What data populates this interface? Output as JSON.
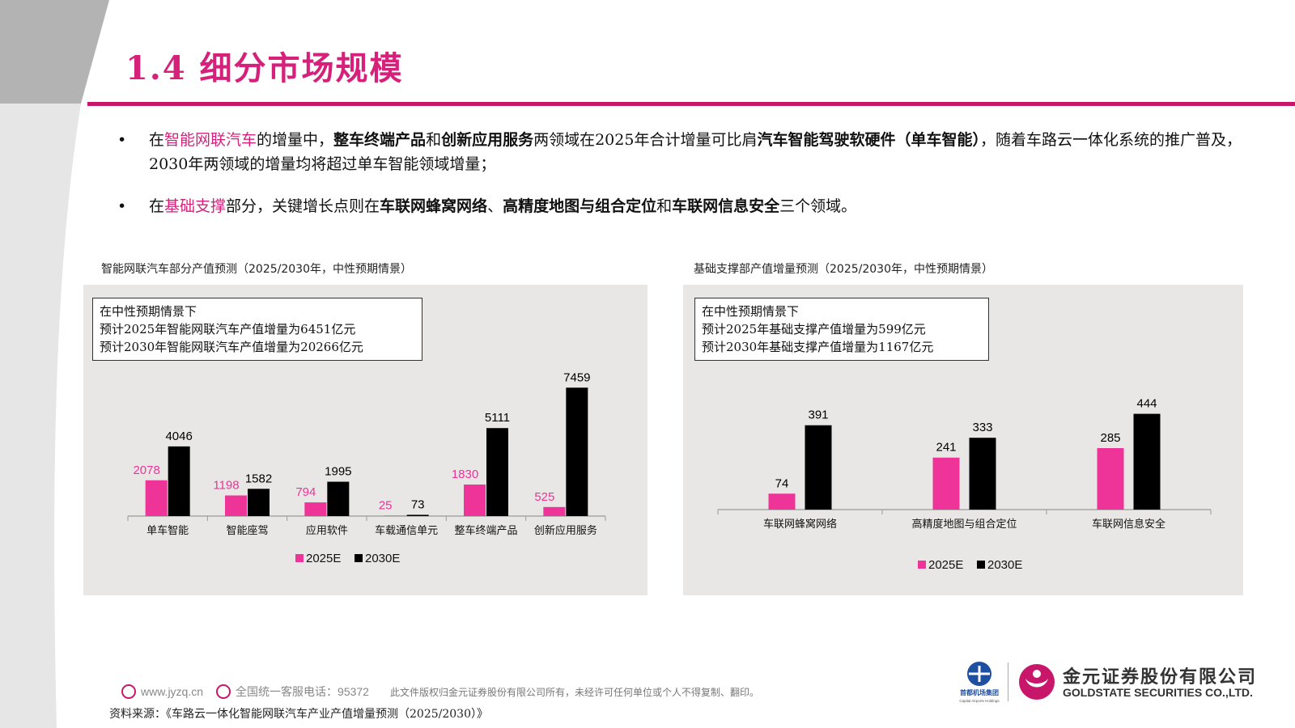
{
  "header": {
    "title": "1.4 细分市场规模"
  },
  "bullets": [
    {
      "segments": [
        {
          "text": "在",
          "style": "normal"
        },
        {
          "text": "智能网联汽车",
          "style": "highlight"
        },
        {
          "text": "的增量中，",
          "style": "normal"
        },
        {
          "text": "整车终端产品",
          "style": "bold"
        },
        {
          "text": "和",
          "style": "normal"
        },
        {
          "text": "创新应用服务",
          "style": "bold"
        },
        {
          "text": "两领域在2025年合计增量可比肩",
          "style": "normal"
        },
        {
          "text": "汽车智能驾驶软硬件（单车智能）",
          "style": "bold"
        },
        {
          "text": "，随着车路云一体化系统的推广普及，2030年两领域的增量均将超过单车智能领域增量；",
          "style": "normal"
        }
      ]
    },
    {
      "segments": [
        {
          "text": "在",
          "style": "normal"
        },
        {
          "text": "基础支撑",
          "style": "highlight"
        },
        {
          "text": "部分，关键增长点则在",
          "style": "normal"
        },
        {
          "text": "车联网蜂窝网络",
          "style": "bold"
        },
        {
          "text": "、",
          "style": "normal"
        },
        {
          "text": "高精度地图与组合定位",
          "style": "bold"
        },
        {
          "text": "和",
          "style": "normal"
        },
        {
          "text": "车联网信息安全",
          "style": "bold"
        },
        {
          "text": "三个领域。",
          "style": "normal"
        }
      ]
    }
  ],
  "bullet_symbol": "•",
  "chart_data": [
    {
      "type": "bar",
      "caption": "智能网联汽车部分产值预测（2025/2030年，中性预期情景）",
      "note_lines": [
        "在中性预期情景下",
        "预计2025年智能网联汽车产值增量为6451亿元",
        "预计2030年智能网联汽车产值增量为20266亿元"
      ],
      "categories": [
        "单车智能",
        "智能座驾",
        "应用软件",
        "车载通信单元",
        "整车终端产品",
        "创新应用服务"
      ],
      "series": [
        {
          "name": "2025E",
          "values": [
            2078,
            1198,
            794,
            25,
            1830,
            525
          ],
          "color": "#ee3399",
          "label_color": "#ee3399"
        },
        {
          "name": "2030E",
          "values": [
            4046,
            1582,
            1995,
            73,
            5111,
            7459
          ],
          "color": "#000000",
          "label_color": "#000000"
        }
      ],
      "ylim": [
        0,
        7800
      ],
      "legend_position": "bottom",
      "grid": false
    },
    {
      "type": "bar",
      "caption": "基础支撑部产值增量预测（2025/2030年，中性预期情景）",
      "note_lines": [
        "在中性预期情景下",
        "预计2025年基础支撑产值增量为599亿元",
        "预计2030年基础支撑产值增量为1167亿元"
      ],
      "categories": [
        "车联网蜂窝网络",
        "高精度地图与组合定位",
        "车联网信息安全"
      ],
      "series": [
        {
          "name": "2025E",
          "values": [
            74,
            241,
            285
          ],
          "color": "#ee3399",
          "label_color": "#000000"
        },
        {
          "name": "2030E",
          "values": [
            391,
            333,
            444
          ],
          "color": "#000000",
          "label_color": "#000000"
        }
      ],
      "ylim": [
        0,
        480
      ],
      "legend_position": "bottom",
      "grid": false
    }
  ],
  "footer": {
    "website": "www.jyzq.cn",
    "hotline": "全国统一客服电话：95372",
    "copyright": "此文件版权归金元证券股份有限公司所有，未经许可任何单位或个人不得复制、翻印。"
  },
  "source": "资料来源：《车路云一体化智能网联汽车产业产值增量预测（2025/2030）》",
  "logos": {
    "airport_cn": "首都机场集团",
    "airport_en": "Capital Airports Holdings",
    "company_cn": "金元证券股份有限公司",
    "company_en": "GOLDSTATE SECURITIES CO.,LTD.",
    "brand_color": "#c8166a"
  }
}
